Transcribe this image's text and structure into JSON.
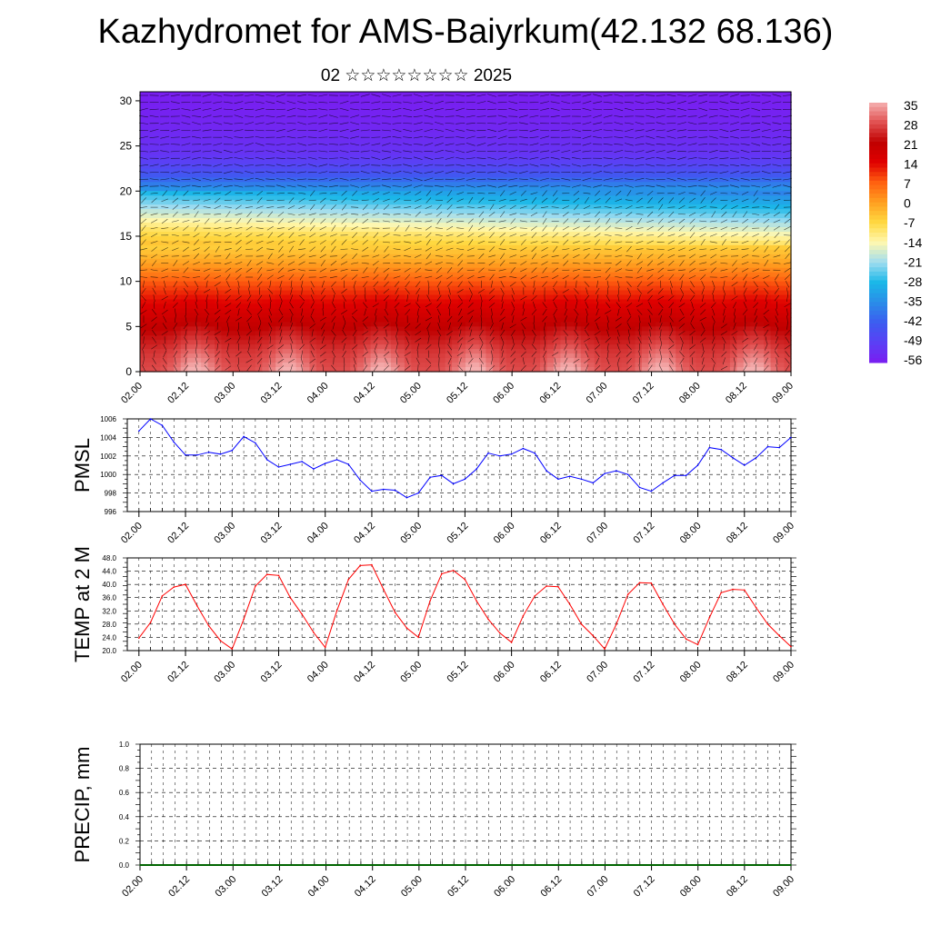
{
  "header": {
    "title": "Kazhydromet for AMS-Baiyrkum(42.132 68.136)",
    "subtitle": "02 ☆☆☆☆☆☆☆☆ 2025"
  },
  "colors": {
    "pmsl_line": "#0000ff",
    "temp_line": "#ff0000",
    "precip_line": "#006400",
    "gridline": "#000000",
    "colorbar": [
      "#7a1df0",
      "#5a40f5",
      "#3c5df0",
      "#2a8de8",
      "#1ab8e8",
      "#9fdcf0",
      "#fff8b0",
      "#ffd840",
      "#ffa020",
      "#ff6010",
      "#e00000",
      "#c00000",
      "#e05050",
      "#f5b0b0"
    ]
  },
  "x_ticks": [
    "02.00",
    "02.12",
    "03.00",
    "03.12",
    "04.00",
    "04.12",
    "05.00",
    "05.12",
    "06.00",
    "06.12",
    "07.00",
    "07.12",
    "08.00",
    "08.12",
    "09.00"
  ],
  "chart_data": [
    {
      "type": "heatmap",
      "name": "vertical temperature cross-section with wind vectors",
      "x_ticks": [
        "02.00",
        "02.12",
        "03.00",
        "03.12",
        "04.00",
        "04.12",
        "05.00",
        "05.12",
        "06.00",
        "06.12",
        "07.00",
        "07.12",
        "08.00",
        "08.12",
        "09.00"
      ],
      "y_ticks": [
        "0",
        "5",
        "10",
        "15",
        "20",
        "25",
        "30"
      ],
      "ylim": [
        0,
        31
      ],
      "colorbar_labels": [
        "35",
        "28",
        "21",
        "14",
        "7",
        "0",
        "-7",
        "-14",
        "-21",
        "-28",
        "-35",
        "-42",
        "-49",
        "-56"
      ],
      "colorbar_range": [
        -60,
        38
      ],
      "levels": [
        0,
        2,
        5,
        8,
        10,
        12,
        15,
        17,
        20,
        22,
        24,
        25,
        27,
        31
      ],
      "level_temps": [
        30,
        28,
        22,
        14,
        8,
        0,
        -10,
        -20,
        -35,
        -48,
        -55,
        -56,
        -58,
        -60
      ],
      "surface_peak_days": [
        0.6,
        1.6,
        2.6,
        3.6,
        4.6,
        5.6,
        6.6
      ]
    },
    {
      "type": "line",
      "ylabel": "PMSL",
      "ylim": [
        996,
        1006
      ],
      "y_ticks": [
        "996",
        "998",
        "1000",
        "1002",
        "1004",
        "1006"
      ],
      "x_step_hours": 3,
      "values": [
        1004.7,
        1006,
        1005.3,
        1003.5,
        1002.1,
        1002.1,
        1002.4,
        1002.2,
        1002.6,
        1004.1,
        1003.4,
        1001.6,
        1000.8,
        1001.1,
        1001.4,
        1000.6,
        1001.2,
        1001.6,
        1001.1,
        999.4,
        998.2,
        998.4,
        998.3,
        997.5,
        998,
        999.7,
        999.9,
        999,
        999.5,
        1000.6,
        1002.3,
        1002,
        1002.2,
        1002.8,
        1002.3,
        1000.4,
        999.5,
        999.8,
        999.5,
        999.1,
        1000.1,
        1000.4,
        1000,
        998.6,
        998.2,
        999.1,
        999.9,
        999.9,
        1001,
        1002.9,
        1002.7,
        1001.8,
        1001,
        1001.8,
        1003,
        1002.9,
        1004
      ]
    },
    {
      "type": "line",
      "ylabel": "TEMP at 2 M",
      "ylim": [
        20,
        48
      ],
      "y_ticks": [
        "20.0",
        "24.0",
        "28.0",
        "32.0",
        "36.0",
        "40.0",
        "44.0",
        "48.0"
      ],
      "x_step_hours": 3,
      "values": [
        23.8,
        28.5,
        36.5,
        39.2,
        40,
        33.5,
        27.5,
        23,
        20.5,
        29.5,
        39.5,
        43,
        42.7,
        36,
        31,
        25.5,
        21,
        32,
        41.5,
        45.7,
        45.9,
        38.5,
        31.5,
        26.8,
        24,
        35,
        43.2,
        44.2,
        41.5,
        35,
        29.5,
        25.3,
        22.5,
        30.5,
        36.5,
        39.5,
        39.3,
        34,
        28,
        24.5,
        20.5,
        28,
        37,
        40.5,
        40.4,
        34,
        28,
        23.5,
        21.8,
        30,
        37.5,
        38.5,
        38.3,
        33,
        28,
        24.5,
        21.2
      ]
    },
    {
      "type": "line",
      "ylabel": "PRECIP, mm",
      "ylim": [
        0,
        1
      ],
      "y_ticks": [
        "0.0",
        "0.2",
        "0.4",
        "0.6",
        "0.8",
        "1.0"
      ],
      "x_step_hours": 3,
      "values": [
        0,
        0,
        0,
        0,
        0,
        0,
        0,
        0,
        0,
        0,
        0,
        0,
        0,
        0,
        0,
        0,
        0,
        0,
        0,
        0,
        0,
        0,
        0,
        0,
        0,
        0,
        0,
        0,
        0,
        0,
        0,
        0,
        0,
        0,
        0,
        0,
        0,
        0,
        0,
        0,
        0,
        0,
        0,
        0,
        0,
        0,
        0,
        0,
        0,
        0,
        0,
        0,
        0,
        0,
        0,
        0,
        0
      ]
    }
  ]
}
